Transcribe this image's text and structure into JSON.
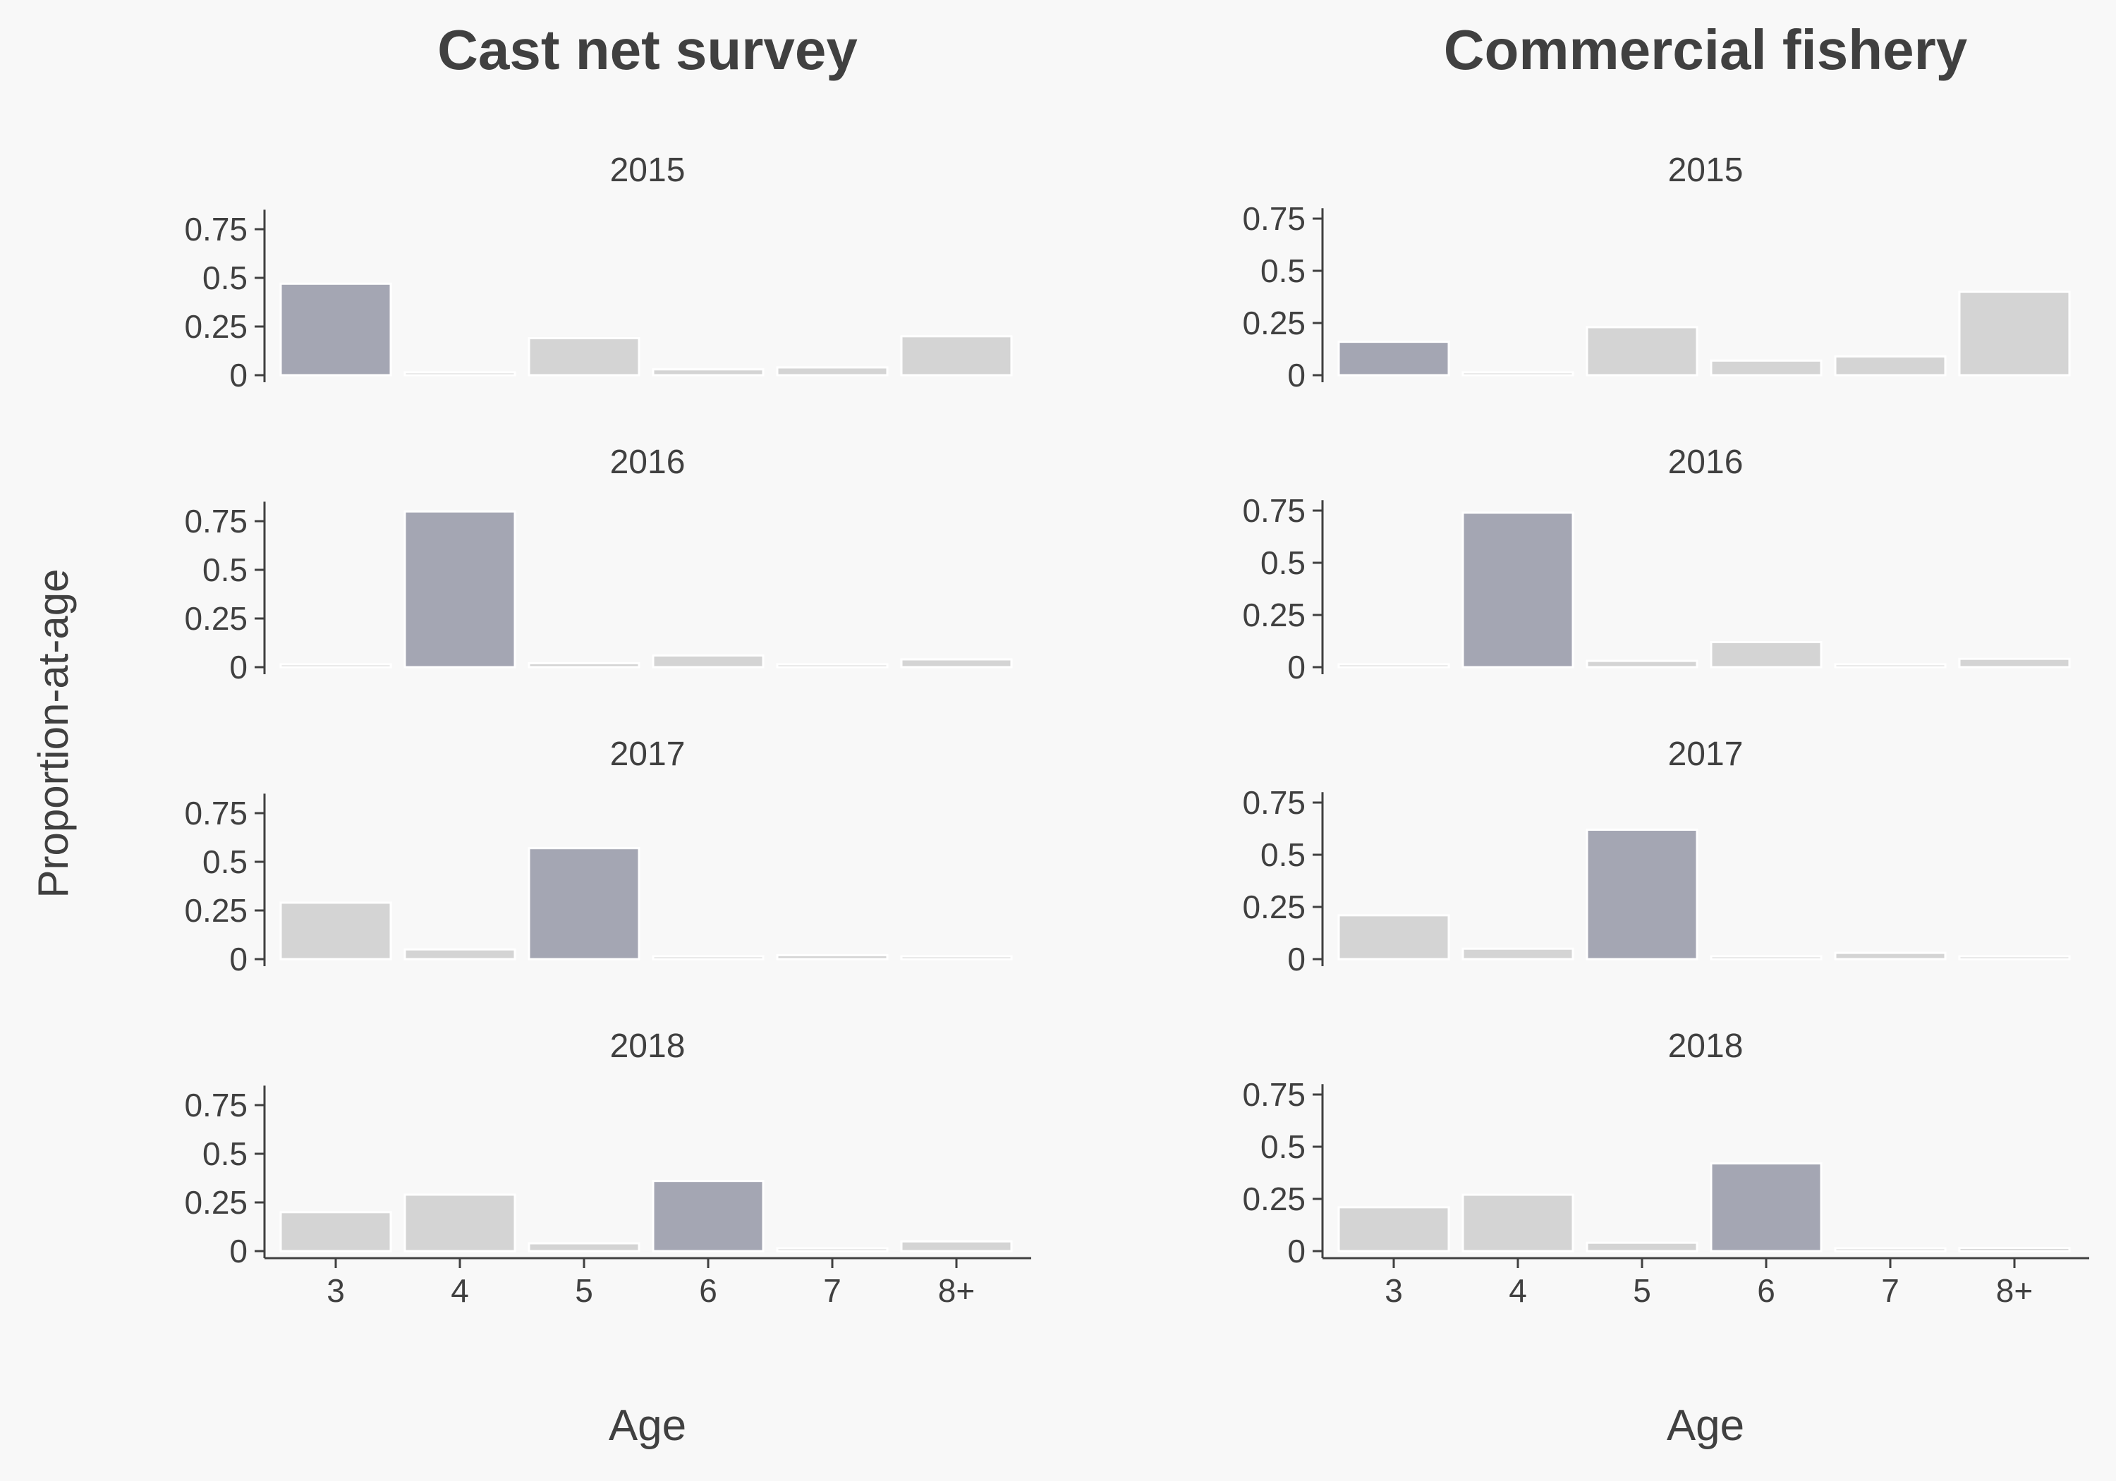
{
  "y_axis_label": "Proportion-at-age",
  "colors": {
    "highlight": "#a4a6b3",
    "bar": "#d4d4d4",
    "axis": "#404040",
    "text": "#404040",
    "background": "#f8f8f8"
  },
  "chart_data": [
    {
      "type": "bar",
      "title": "Cast net survey",
      "xlabel": "Age",
      "ylabel": "Proportion-at-age",
      "categories": [
        "3",
        "4",
        "5",
        "6",
        "7",
        "8+"
      ],
      "ylim": [
        0,
        0.85
      ],
      "yticks": [
        0,
        0.25,
        0.5,
        0.75
      ],
      "ytick_labels": [
        "0",
        "0.25",
        "0.5",
        "0.75"
      ],
      "panels": [
        {
          "year": "2015",
          "values": [
            0.47,
            0.01,
            0.19,
            0.03,
            0.04,
            0.2
          ],
          "highlight": 0
        },
        {
          "year": "2016",
          "values": [
            0.01,
            0.8,
            0.02,
            0.06,
            0.01,
            0.04
          ],
          "highlight": 1
        },
        {
          "year": "2017",
          "values": [
            0.29,
            0.05,
            0.57,
            0.005,
            0.02,
            0.005
          ],
          "highlight": 2
        },
        {
          "year": "2018",
          "values": [
            0.2,
            0.29,
            0.04,
            0.36,
            0.005,
            0.05
          ],
          "highlight": 3
        }
      ]
    },
    {
      "type": "bar",
      "title": "Commercial fishery",
      "xlabel": "Age",
      "ylabel": "Proportion-at-age",
      "categories": [
        "3",
        "4",
        "5",
        "6",
        "7",
        "8+"
      ],
      "ylim": [
        0,
        0.8
      ],
      "yticks": [
        0,
        0.25,
        0.5,
        0.75
      ],
      "ytick_labels": [
        "0",
        "0.25",
        "0.5",
        "0.75"
      ],
      "panels": [
        {
          "year": "2015",
          "values": [
            0.16,
            0.005,
            0.23,
            0.07,
            0.09,
            0.4
          ],
          "highlight": 0
        },
        {
          "year": "2016",
          "values": [
            0.005,
            0.74,
            0.03,
            0.12,
            0.01,
            0.04
          ],
          "highlight": 1
        },
        {
          "year": "2017",
          "values": [
            0.21,
            0.05,
            0.62,
            0.01,
            0.03,
            0.005
          ],
          "highlight": 2
        },
        {
          "year": "2018",
          "values": [
            0.21,
            0.27,
            0.04,
            0.42,
            0.002,
            0.015
          ],
          "highlight": 3
        }
      ]
    }
  ]
}
